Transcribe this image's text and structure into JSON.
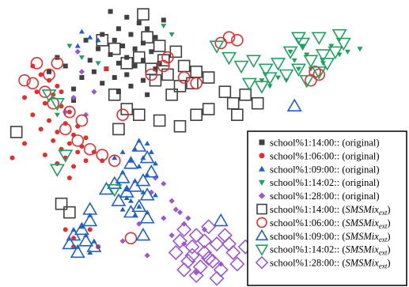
{
  "chart_data": {
    "type": "scatter",
    "title": "",
    "xlabel": "",
    "ylabel": "",
    "axes_visible": false,
    "grid": false,
    "legend_position": "right",
    "xlim": [
      0,
      100
    ],
    "ylim": [
      0,
      100
    ],
    "series": [
      {
        "name": "school%1:14:00:: (original)",
        "label_text": "school%1:14:00:: (original)",
        "marker": "filled-square",
        "color": "#404040",
        "points": [
          [
            27,
            96
          ],
          [
            31,
            94
          ],
          [
            34,
            92
          ],
          [
            29,
            90
          ],
          [
            36,
            90
          ],
          [
            25,
            88
          ],
          [
            32,
            88
          ],
          [
            38,
            87
          ],
          [
            28,
            86
          ],
          [
            35,
            85
          ],
          [
            30,
            84
          ],
          [
            24,
            83
          ],
          [
            33,
            83
          ],
          [
            37,
            82
          ],
          [
            27,
            81
          ],
          [
            31,
            80
          ],
          [
            22,
            79
          ],
          [
            35,
            79
          ],
          [
            29,
            78
          ],
          [
            33,
            77
          ],
          [
            26,
            76
          ],
          [
            38,
            76
          ],
          [
            23,
            75
          ],
          [
            31,
            74
          ],
          [
            20,
            73
          ],
          [
            28,
            73
          ],
          [
            35,
            72
          ],
          [
            25,
            71
          ],
          [
            32,
            70
          ],
          [
            18,
            69
          ],
          [
            29,
            68
          ],
          [
            36,
            67
          ],
          [
            14,
            80
          ],
          [
            16,
            77
          ],
          [
            12,
            75
          ],
          [
            40,
            93
          ],
          [
            39,
            78
          ],
          [
            21,
            86
          ],
          [
            18,
            65
          ]
        ]
      },
      {
        "name": "school%1:06:00:: (original)",
        "label_text": "school%1:06:00:: (original)",
        "marker": "filled-circle",
        "color": "#e03030",
        "points": [
          [
            8,
            77
          ],
          [
            10,
            74
          ],
          [
            12,
            72
          ],
          [
            14,
            70
          ],
          [
            9,
            68
          ],
          [
            13,
            67
          ],
          [
            11,
            64
          ],
          [
            15,
            63
          ],
          [
            17,
            61
          ],
          [
            8,
            60
          ],
          [
            12,
            58
          ],
          [
            16,
            57
          ],
          [
            19,
            56
          ],
          [
            10,
            55
          ],
          [
            14,
            54
          ],
          [
            18,
            53
          ],
          [
            21,
            52
          ],
          [
            13,
            51
          ],
          [
            17,
            50
          ],
          [
            20,
            49
          ],
          [
            15,
            48
          ],
          [
            19,
            47
          ],
          [
            23,
            47
          ],
          [
            11,
            46
          ],
          [
            16,
            45
          ],
          [
            21,
            44
          ],
          [
            25,
            44
          ],
          [
            14,
            43
          ],
          [
            18,
            42
          ],
          [
            3,
            45
          ],
          [
            6,
            50
          ],
          [
            26,
            76
          ],
          [
            15,
            68
          ],
          [
            6,
            66
          ],
          [
            17,
            38
          ],
          [
            18,
            17
          ],
          [
            16,
            20
          ],
          [
            24,
            14
          ],
          [
            22,
            20
          ],
          [
            18,
            14
          ]
        ]
      },
      {
        "name": "school%1:09:00:: (original)",
        "label_text": "school%1:09:00:: (original)",
        "marker": "filled-triangle",
        "color": "#2060c8",
        "points": [
          [
            20,
            89
          ],
          [
            22,
            87
          ],
          [
            24,
            86
          ],
          [
            19,
            84
          ],
          [
            34,
            51
          ],
          [
            36,
            50
          ],
          [
            33,
            48
          ],
          [
            37,
            47
          ],
          [
            35,
            45
          ],
          [
            32,
            44
          ],
          [
            38,
            43
          ],
          [
            34,
            42
          ],
          [
            30,
            40
          ],
          [
            36,
            39
          ],
          [
            33,
            37
          ],
          [
            29,
            36
          ],
          [
            31,
            34
          ],
          [
            35,
            33
          ],
          [
            38,
            32
          ],
          [
            32,
            30
          ],
          [
            34,
            28
          ],
          [
            30,
            27
          ],
          [
            36,
            26
          ],
          [
            33,
            25
          ],
          [
            22,
            25
          ],
          [
            20,
            21
          ],
          [
            18,
            20
          ],
          [
            21,
            18
          ],
          [
            23,
            16
          ],
          [
            19,
            14
          ],
          [
            22,
            12
          ],
          [
            31,
            31
          ],
          [
            28,
            45
          ],
          [
            30,
            47
          ]
        ]
      },
      {
        "name": "school%1:14:02:: (original)",
        "label_text": "school%1:14:02:: (original)",
        "marker": "filled-triangle-down",
        "color": "#20a060",
        "points": [
          [
            40,
            91
          ],
          [
            42,
            88
          ],
          [
            83,
            81
          ],
          [
            76,
            76
          ],
          [
            73,
            76
          ],
          [
            70,
            72
          ],
          [
            68,
            73
          ],
          [
            72,
            79
          ],
          [
            75,
            81
          ],
          [
            79,
            78
          ],
          [
            81,
            84
          ],
          [
            85,
            82
          ],
          [
            88,
            83
          ],
          [
            66,
            70
          ],
          [
            64,
            72
          ],
          [
            20,
            80
          ],
          [
            17,
            84
          ],
          [
            24,
            78
          ],
          [
            71,
            82
          ],
          [
            74,
            84
          ],
          [
            14,
            60
          ]
        ]
      },
      {
        "name": "school%1:28:00:: (original)",
        "label_text": "school%1:28:00:: (original)",
        "marker": "filled-diamond",
        "color": "#9b59d0",
        "points": [
          [
            19,
            82
          ],
          [
            20,
            75
          ],
          [
            23,
            68
          ],
          [
            18,
            66
          ],
          [
            16,
            61
          ],
          [
            21,
            60
          ],
          [
            34,
            22
          ],
          [
            38,
            38
          ],
          [
            40,
            36
          ],
          [
            37,
            33
          ],
          [
            42,
            30
          ],
          [
            44,
            26
          ],
          [
            46,
            24
          ],
          [
            45,
            22
          ],
          [
            40,
            24
          ],
          [
            43,
            27
          ],
          [
            30,
            16
          ],
          [
            36,
            11
          ],
          [
            42,
            18
          ],
          [
            45,
            15
          ],
          [
            50,
            20
          ],
          [
            54,
            8
          ],
          [
            48,
            5
          ]
        ]
      },
      {
        "name": "school%1:14:00:: (SMSMix_ext)",
        "label_text": "school%1:14:00:: (",
        "label_math": "SMSMix",
        "label_sub": "ext",
        "label_end": ")",
        "marker": "open-square",
        "color": "#404040",
        "points": [
          [
            35,
            95
          ],
          [
            36,
            87
          ],
          [
            25,
            86
          ],
          [
            39,
            84
          ],
          [
            28,
            83
          ],
          [
            43,
            82
          ],
          [
            34,
            80
          ],
          [
            40,
            79
          ],
          [
            31,
            78
          ],
          [
            45,
            77
          ],
          [
            37,
            76
          ],
          [
            48,
            75
          ],
          [
            41,
            74
          ],
          [
            51,
            73
          ],
          [
            38,
            72
          ],
          [
            47,
            71
          ],
          [
            44,
            70
          ],
          [
            42,
            67
          ],
          [
            55,
            68
          ],
          [
            60,
            67
          ],
          [
            57,
            64
          ],
          [
            51,
            62
          ],
          [
            48,
            60
          ],
          [
            44,
            56
          ],
          [
            39,
            58
          ],
          [
            34,
            60
          ],
          [
            63,
            64
          ],
          [
            58,
            60
          ],
          [
            28,
            67
          ],
          [
            31,
            62
          ],
          [
            29,
            55
          ],
          [
            4,
            54
          ],
          [
            15,
            29
          ],
          [
            17,
            26
          ]
        ]
      },
      {
        "name": "school%1:06:00:: (SMSMix_ext)",
        "label_text": "school%1:06:00:: (",
        "label_math": "SMSMix",
        "label_sub": "ext",
        "label_end": ")",
        "marker": "open-circle",
        "color": "#e03030",
        "points": [
          [
            9,
            78
          ],
          [
            12,
            74
          ],
          [
            14,
            78
          ],
          [
            8,
            71
          ],
          [
            11,
            68
          ],
          [
            6,
            72
          ],
          [
            13,
            64
          ],
          [
            17,
            61
          ],
          [
            20,
            58
          ],
          [
            16,
            55
          ],
          [
            19,
            51
          ],
          [
            22,
            48
          ],
          [
            25,
            46
          ],
          [
            28,
            44
          ],
          [
            30,
            60
          ],
          [
            41,
            80
          ],
          [
            40,
            77
          ],
          [
            37,
            74
          ],
          [
            45,
            73
          ],
          [
            48,
            71
          ],
          [
            54,
            85
          ],
          [
            56,
            87
          ],
          [
            58,
            86
          ],
          [
            76,
            72
          ],
          [
            77,
            75
          ],
          [
            78,
            74
          ],
          [
            32,
            17
          ]
        ]
      },
      {
        "name": "school%1:09:00:: (SMSMix_ext)",
        "label_text": "school%1:09:00:: (",
        "label_math": "SMSMix",
        "label_sub": "ext",
        "label_end": ")",
        "marker": "open-triangle",
        "color": "#2060c8",
        "points": [
          [
            34,
            49
          ],
          [
            36,
            45
          ],
          [
            32,
            43
          ],
          [
            37,
            40
          ],
          [
            30,
            38
          ],
          [
            35,
            37
          ],
          [
            28,
            36
          ],
          [
            33,
            35
          ],
          [
            31,
            33
          ],
          [
            36,
            32
          ],
          [
            29,
            30
          ],
          [
            34,
            28
          ],
          [
            32,
            26
          ],
          [
            36,
            24
          ],
          [
            26,
            34
          ],
          [
            22,
            23
          ],
          [
            20,
            20
          ],
          [
            18,
            18
          ],
          [
            21,
            16
          ],
          [
            23,
            14
          ],
          [
            19,
            12
          ],
          [
            17,
            15
          ],
          [
            22,
            27
          ],
          [
            54,
            23
          ],
          [
            72,
            63
          ],
          [
            35,
            18
          ]
        ]
      },
      {
        "name": "school%1:14:02:: (SMSMix_ext)",
        "label_text": "school%1:14:02:: (",
        "label_math": "SMSMix",
        "label_sub": "ext",
        "label_end": ")",
        "marker": "open-triangle-down",
        "color": "#20a060",
        "points": [
          [
            53,
            84
          ],
          [
            56,
            80
          ],
          [
            59,
            77
          ],
          [
            62,
            79
          ],
          [
            65,
            76
          ],
          [
            68,
            78
          ],
          [
            66,
            73
          ],
          [
            64,
            70
          ],
          [
            70,
            74
          ],
          [
            73,
            76
          ],
          [
            76,
            79
          ],
          [
            79,
            81
          ],
          [
            82,
            82
          ],
          [
            84,
            85
          ],
          [
            83,
            88
          ],
          [
            78,
            87
          ],
          [
            74,
            85
          ],
          [
            71,
            82
          ],
          [
            75,
            72
          ],
          [
            78,
            75
          ],
          [
            80,
            78
          ],
          [
            73,
            87
          ],
          [
            61,
            71
          ],
          [
            14,
            64
          ],
          [
            12,
            67
          ],
          [
            16,
            46
          ],
          [
            28,
            34
          ],
          [
            14,
            41
          ]
        ]
      },
      {
        "name": "school%1:28:00:: (SMSMix_ext)",
        "label_text": "school%1:28:00:: (",
        "label_math": "SMSMix",
        "label_sub": "ext",
        "label_end": ")",
        "marker": "open-diamond",
        "color": "#9b59d0",
        "points": [
          [
            45,
            20
          ],
          [
            48,
            18
          ],
          [
            51,
            21
          ],
          [
            44,
            16
          ],
          [
            47,
            14
          ],
          [
            50,
            12
          ],
          [
            53,
            15
          ],
          [
            55,
            18
          ],
          [
            43,
            12
          ],
          [
            46,
            9
          ],
          [
            49,
            7
          ],
          [
            52,
            9
          ],
          [
            54,
            6
          ],
          [
            57,
            12
          ],
          [
            45,
            6
          ],
          [
            48,
            4
          ],
          [
            58,
            8
          ],
          [
            56,
            15
          ],
          [
            53,
            3
          ],
          [
            50,
            16
          ],
          [
            60,
            14
          ],
          [
            51,
            10
          ],
          [
            47,
            11
          ]
        ]
      }
    ]
  }
}
